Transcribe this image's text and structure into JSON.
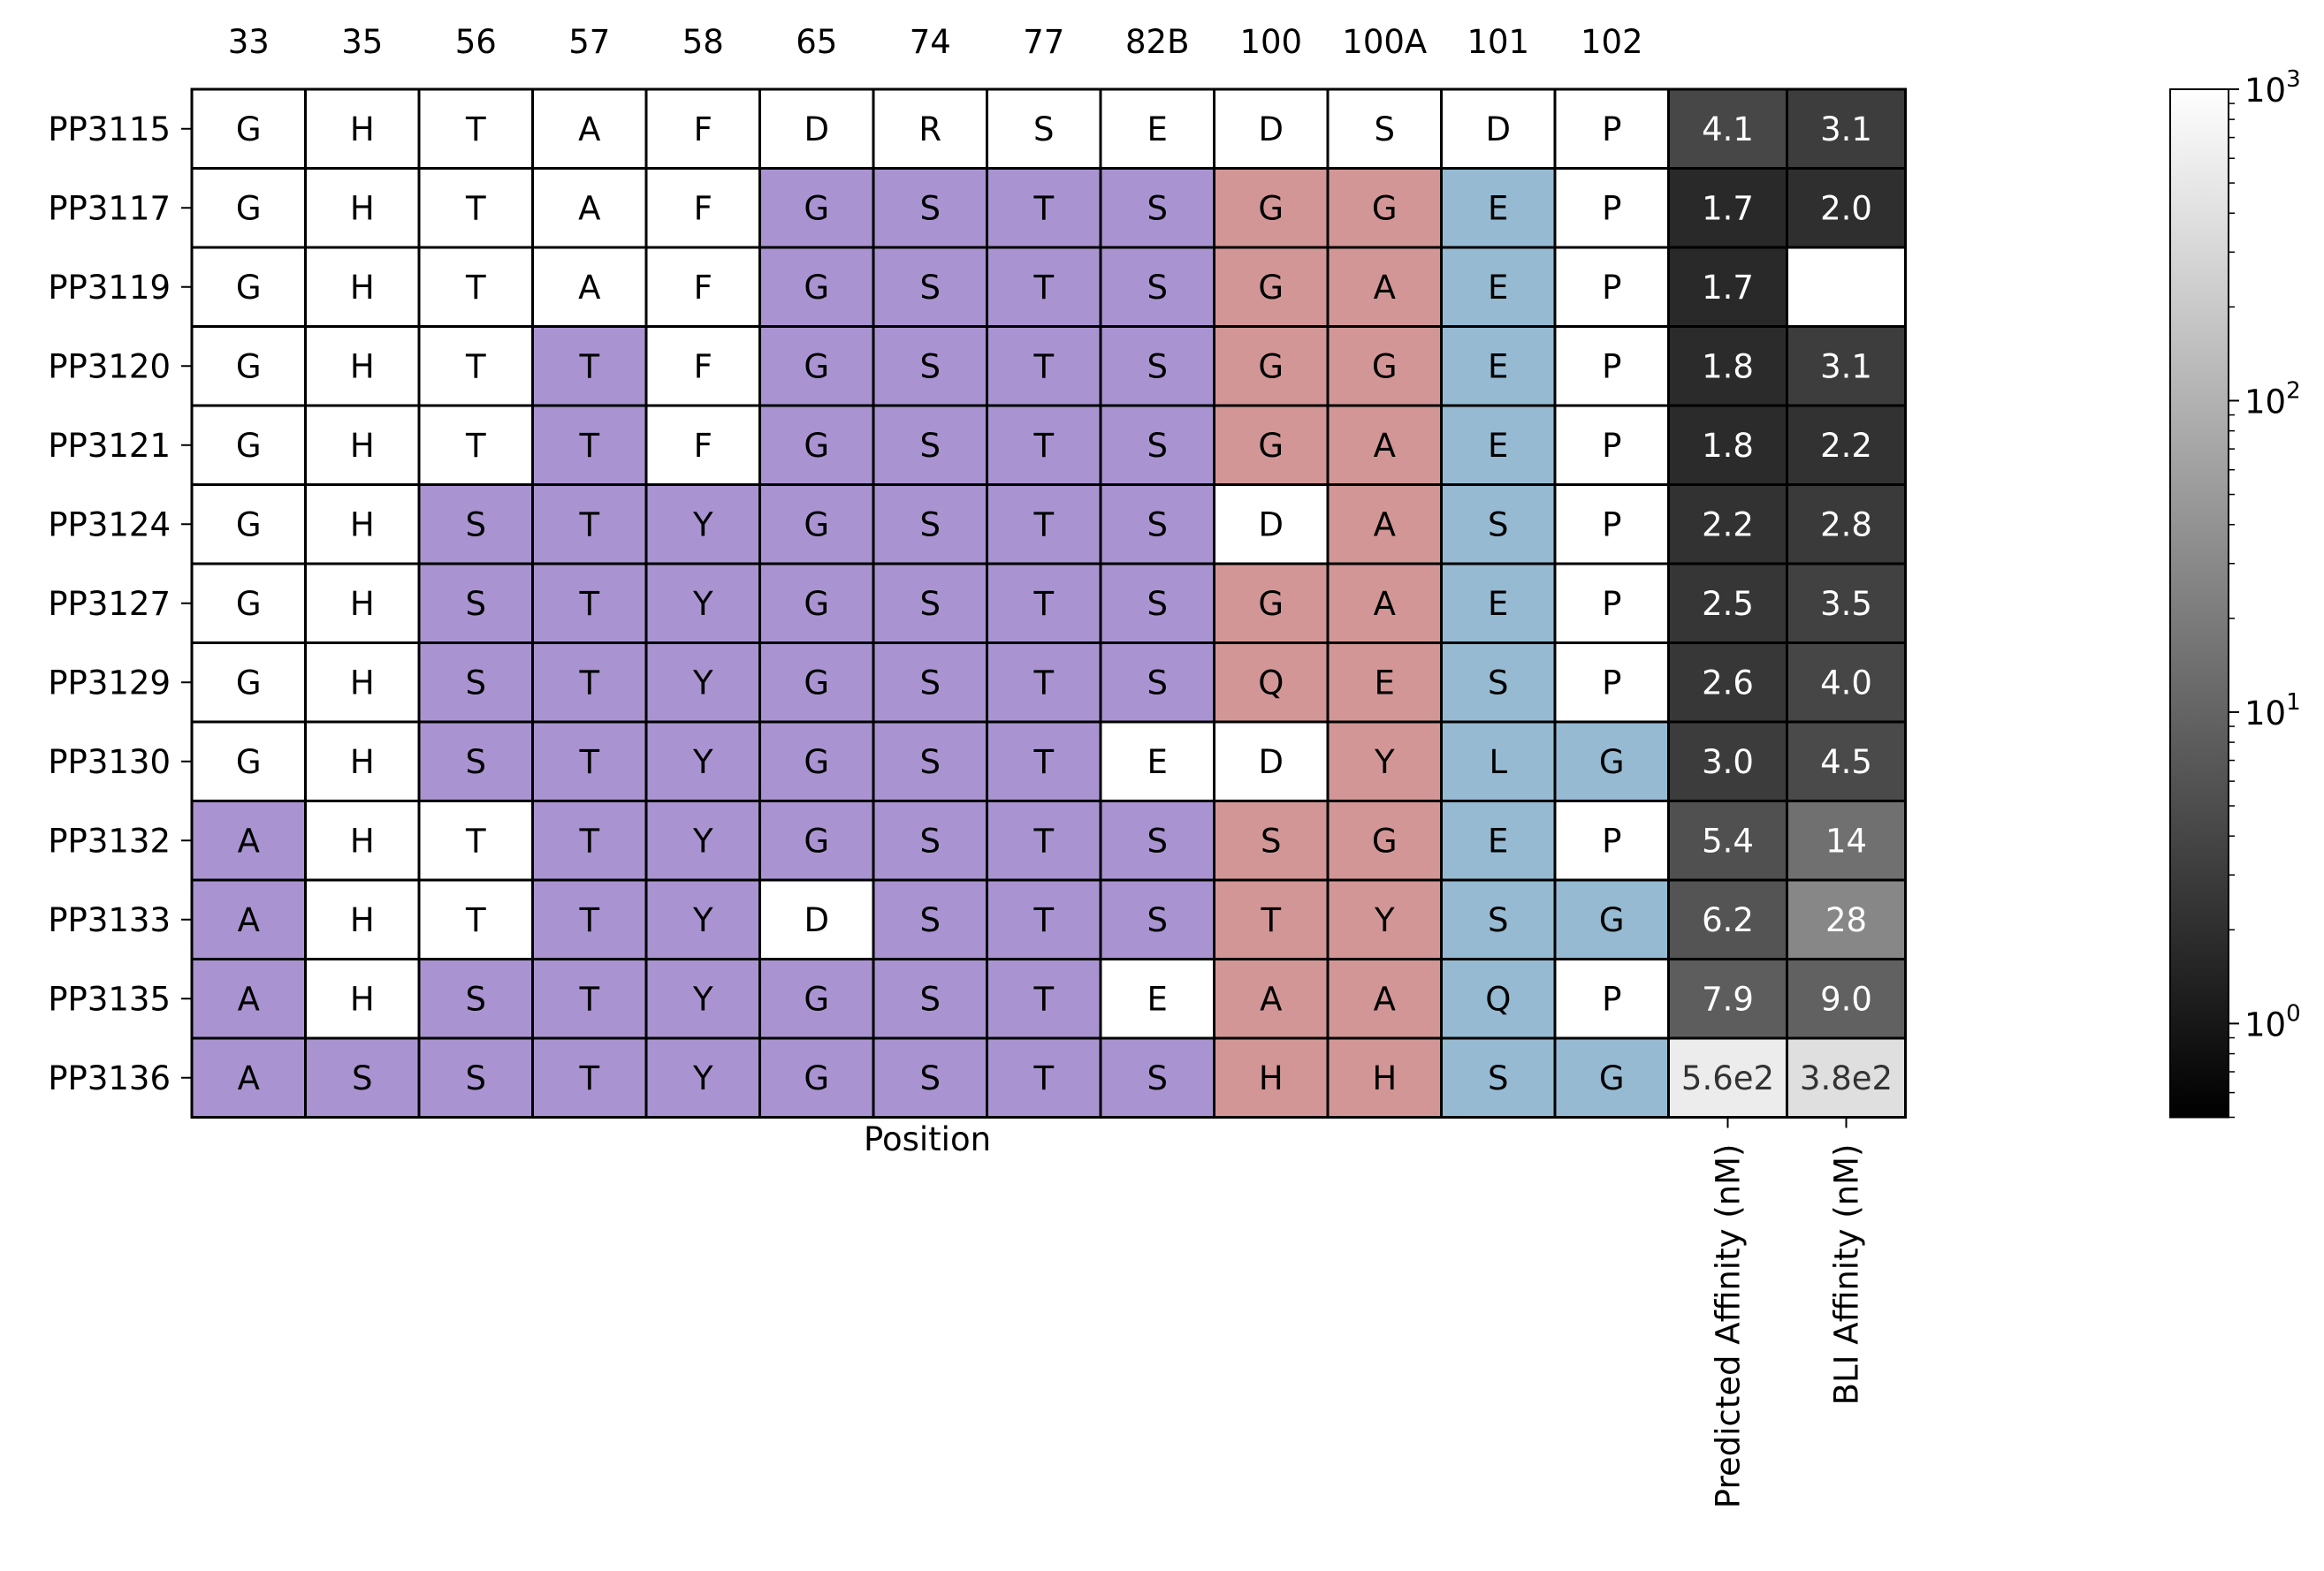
{
  "chart_data": {
    "type": "heatmap",
    "xlabel": "Position",
    "positions": [
      "33",
      "35",
      "56",
      "57",
      "58",
      "65",
      "74",
      "77",
      "82B",
      "100",
      "100A",
      "101",
      "102"
    ],
    "position_colors": {
      "mutated_framework": "#a994d1",
      "mutated_cdr_h3": "#d39696",
      "mutated_101_102": "#96bad2",
      "wildtype": "#ffffff"
    },
    "position_groups": [
      "mutated_framework",
      "mutated_framework",
      "mutated_framework",
      "mutated_framework",
      "mutated_framework",
      "mutated_framework",
      "mutated_framework",
      "mutated_framework",
      "mutated_framework",
      "mutated_cdr_h3",
      "mutated_cdr_h3",
      "mutated_101_102",
      "mutated_101_102"
    ],
    "rows": [
      {
        "name": "PP3115",
        "residues": [
          "G",
          "H",
          "T",
          "A",
          "F",
          "D",
          "R",
          "S",
          "E",
          "D",
          "S",
          "D",
          "P"
        ],
        "predicted": 4.1,
        "predicted_label": "4.1",
        "bli": 3.1,
        "bli_label": "3.1"
      },
      {
        "name": "PP3117",
        "residues": [
          "G",
          "H",
          "T",
          "A",
          "F",
          "G",
          "S",
          "T",
          "S",
          "G",
          "G",
          "E",
          "P"
        ],
        "predicted": 1.7,
        "predicted_label": "1.7",
        "bli": 2.0,
        "bli_label": "2.0"
      },
      {
        "name": "PP3119",
        "residues": [
          "G",
          "H",
          "T",
          "A",
          "F",
          "G",
          "S",
          "T",
          "S",
          "G",
          "A",
          "E",
          "P"
        ],
        "predicted": 1.7,
        "predicted_label": "1.7",
        "bli": null,
        "bli_label": ""
      },
      {
        "name": "PP3120",
        "residues": [
          "G",
          "H",
          "T",
          "T",
          "F",
          "G",
          "S",
          "T",
          "S",
          "G",
          "G",
          "E",
          "P"
        ],
        "predicted": 1.8,
        "predicted_label": "1.8",
        "bli": 3.1,
        "bli_label": "3.1"
      },
      {
        "name": "PP3121",
        "residues": [
          "G",
          "H",
          "T",
          "T",
          "F",
          "G",
          "S",
          "T",
          "S",
          "G",
          "A",
          "E",
          "P"
        ],
        "predicted": 1.8,
        "predicted_label": "1.8",
        "bli": 2.2,
        "bli_label": "2.2"
      },
      {
        "name": "PP3124",
        "residues": [
          "G",
          "H",
          "S",
          "T",
          "Y",
          "G",
          "S",
          "T",
          "S",
          "D",
          "A",
          "S",
          "P"
        ],
        "predicted": 2.2,
        "predicted_label": "2.2",
        "bli": 2.8,
        "bli_label": "2.8"
      },
      {
        "name": "PP3127",
        "residues": [
          "G",
          "H",
          "S",
          "T",
          "Y",
          "G",
          "S",
          "T",
          "S",
          "G",
          "A",
          "E",
          "P"
        ],
        "predicted": 2.5,
        "predicted_label": "2.5",
        "bli": 3.5,
        "bli_label": "3.5"
      },
      {
        "name": "PP3129",
        "residues": [
          "G",
          "H",
          "S",
          "T",
          "Y",
          "G",
          "S",
          "T",
          "S",
          "Q",
          "E",
          "S",
          "P"
        ],
        "predicted": 2.6,
        "predicted_label": "2.6",
        "bli": 4.0,
        "bli_label": "4.0"
      },
      {
        "name": "PP3130",
        "residues": [
          "G",
          "H",
          "S",
          "T",
          "Y",
          "G",
          "S",
          "T",
          "E",
          "D",
          "Y",
          "L",
          "G"
        ],
        "predicted": 3.0,
        "predicted_label": "3.0",
        "bli": 4.5,
        "bli_label": "4.5"
      },
      {
        "name": "PP3132",
        "residues": [
          "A",
          "H",
          "T",
          "T",
          "Y",
          "G",
          "S",
          "T",
          "S",
          "S",
          "G",
          "E",
          "P"
        ],
        "predicted": 5.4,
        "predicted_label": "5.4",
        "bli": 14,
        "bli_label": "14"
      },
      {
        "name": "PP3133",
        "residues": [
          "A",
          "H",
          "T",
          "T",
          "Y",
          "D",
          "S",
          "T",
          "S",
          "T",
          "Y",
          "S",
          "G"
        ],
        "predicted": 6.2,
        "predicted_label": "6.2",
        "bli": 28,
        "bli_label": "28"
      },
      {
        "name": "PP3135",
        "residues": [
          "A",
          "H",
          "S",
          "T",
          "Y",
          "G",
          "S",
          "T",
          "E",
          "A",
          "A",
          "Q",
          "P"
        ],
        "predicted": 7.9,
        "predicted_label": "7.9",
        "bli": 9.0,
        "bli_label": "9.0"
      },
      {
        "name": "PP3136",
        "residues": [
          "A",
          "S",
          "S",
          "T",
          "Y",
          "G",
          "S",
          "T",
          "S",
          "H",
          "H",
          "S",
          "G"
        ],
        "predicted": 560,
        "predicted_label": "5.6e2",
        "bli": 380,
        "bli_label": "3.8e2"
      }
    ],
    "affinity_columns": [
      {
        "key": "predicted",
        "label": "Predicted Affinity (nM)"
      },
      {
        "key": "bli",
        "label": "BLI Affinity (nM)"
      }
    ],
    "colorbar": {
      "scale": "log",
      "vmin": 0.5,
      "vmax": 1000,
      "colormap": "gray",
      "major_ticks": [
        {
          "value": 1,
          "base": "10",
          "exp": "0"
        },
        {
          "value": 10,
          "base": "10",
          "exp": "1"
        },
        {
          "value": 100,
          "base": "10",
          "exp": "2"
        },
        {
          "value": 1000,
          "base": "10",
          "exp": "3"
        }
      ]
    },
    "grid": true
  }
}
